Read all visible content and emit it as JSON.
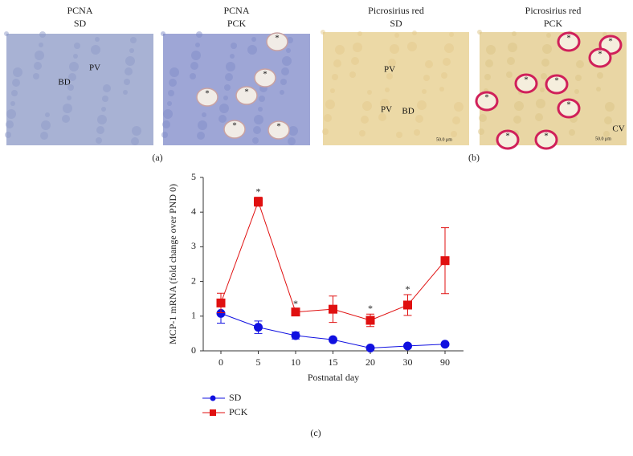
{
  "figure": {
    "panels": [
      {
        "title": [
          "PCNA",
          "SD"
        ],
        "annotations": [
          "PV",
          "BD"
        ]
      },
      {
        "title": [
          "PCNA",
          "PCK"
        ],
        "annotations": [
          "*",
          "*",
          "*",
          "*",
          "*",
          "*"
        ]
      },
      {
        "title": [
          "Picrosirius red",
          "SD"
        ],
        "annotations": [
          "PV",
          "PV",
          "BD",
          "50.0 μm"
        ]
      },
      {
        "title": [
          "Picrosirius red",
          "PCK"
        ],
        "annotations": [
          "*",
          "*",
          "*",
          "*",
          "*",
          "*",
          "*",
          "*",
          "*",
          "CV",
          "50.0 μm"
        ]
      }
    ],
    "labels": [
      "(a)",
      "(b)",
      "(c)"
    ]
  },
  "chart_data": {
    "type": "line",
    "xlabel": "Postnatal day",
    "ylabel": "MCP-1 mRNA (fold change over PND 0)",
    "categories": [
      "0",
      "5",
      "10",
      "15",
      "20",
      "30",
      "90"
    ],
    "ylim": [
      0,
      5
    ],
    "yticks": [
      0,
      1,
      2,
      3,
      4,
      5
    ],
    "series": [
      {
        "name": "SD",
        "color": "#1010e0",
        "marker": "circle",
        "values": [
          1.08,
          0.68,
          0.44,
          0.32,
          0.08,
          0.14,
          0.19
        ],
        "errors": [
          0.28,
          0.18,
          0.1,
          0.05,
          0.03,
          0.03,
          0.03
        ]
      },
      {
        "name": "PCK",
        "color": "#e01010",
        "marker": "square",
        "values": [
          1.38,
          4.3,
          1.12,
          1.2,
          0.88,
          1.32,
          2.6
        ],
        "errors": [
          0.28,
          0.13,
          0.08,
          0.38,
          0.18,
          0.3,
          0.95
        ],
        "significance_labels": [
          null,
          "*",
          "*",
          null,
          "*",
          "*",
          null
        ]
      }
    ]
  }
}
